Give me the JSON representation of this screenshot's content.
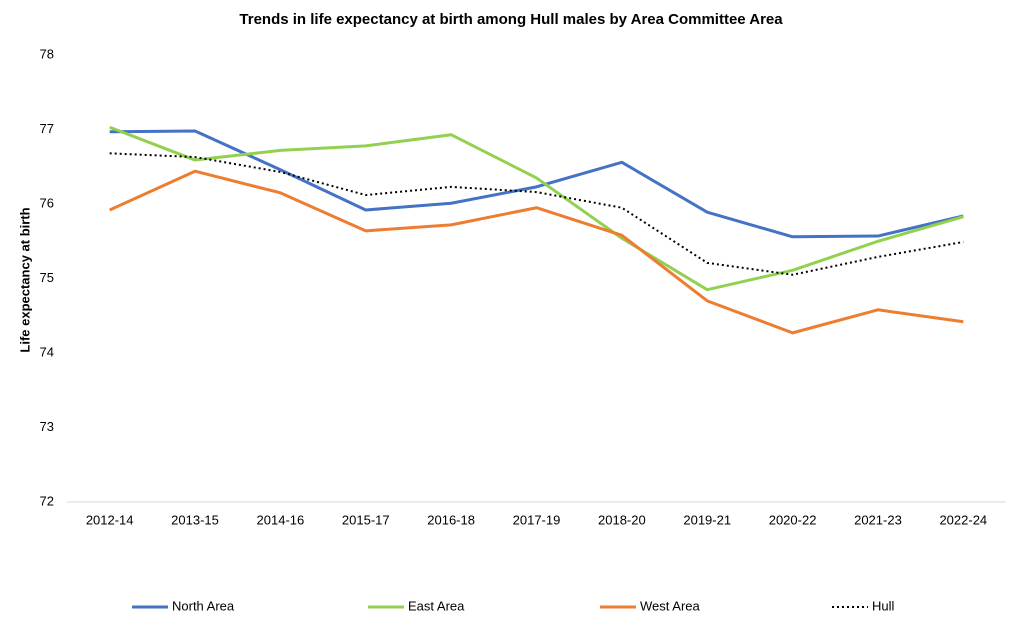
{
  "chart_data": {
    "type": "line",
    "title": "Trends in life expectancy at birth among Hull males by Area Committee Area",
    "y_label": "Life expectancy at birth",
    "categories": [
      "2012-14",
      "2013-15",
      "2014-16",
      "2015-17",
      "2016-18",
      "2017-19",
      "2018-20",
      "2019-21",
      "2020-22",
      "2021-23",
      "2022-24"
    ],
    "series": [
      {
        "name": "North Area",
        "color": "#4472c4",
        "values": [
          76.97,
          76.98,
          76.46,
          75.92,
          76.01,
          76.23,
          76.56,
          75.89,
          75.56,
          75.57,
          75.84
        ]
      },
      {
        "name": "East Area",
        "color": "#92d050",
        "values": [
          77.03,
          76.59,
          76.72,
          76.78,
          76.93,
          76.35,
          75.54,
          74.85,
          75.11,
          75.5,
          75.83
        ]
      },
      {
        "name": "West Area",
        "color": "#ed7d31",
        "values": [
          75.92,
          76.44,
          76.15,
          75.64,
          75.72,
          75.95,
          75.58,
          74.7,
          74.27,
          74.58,
          74.42
        ]
      },
      {
        "name": "Hull",
        "color": "#000000",
        "dash": "dotted",
        "values": [
          76.68,
          76.63,
          76.43,
          76.12,
          76.23,
          76.16,
          75.95,
          75.21,
          75.05,
          75.29,
          75.49
        ]
      }
    ],
    "ylim": [
      72,
      78
    ],
    "yticks": [
      72,
      73,
      74,
      75,
      76,
      77,
      78
    ],
    "grid": false,
    "legend": "bottom"
  }
}
